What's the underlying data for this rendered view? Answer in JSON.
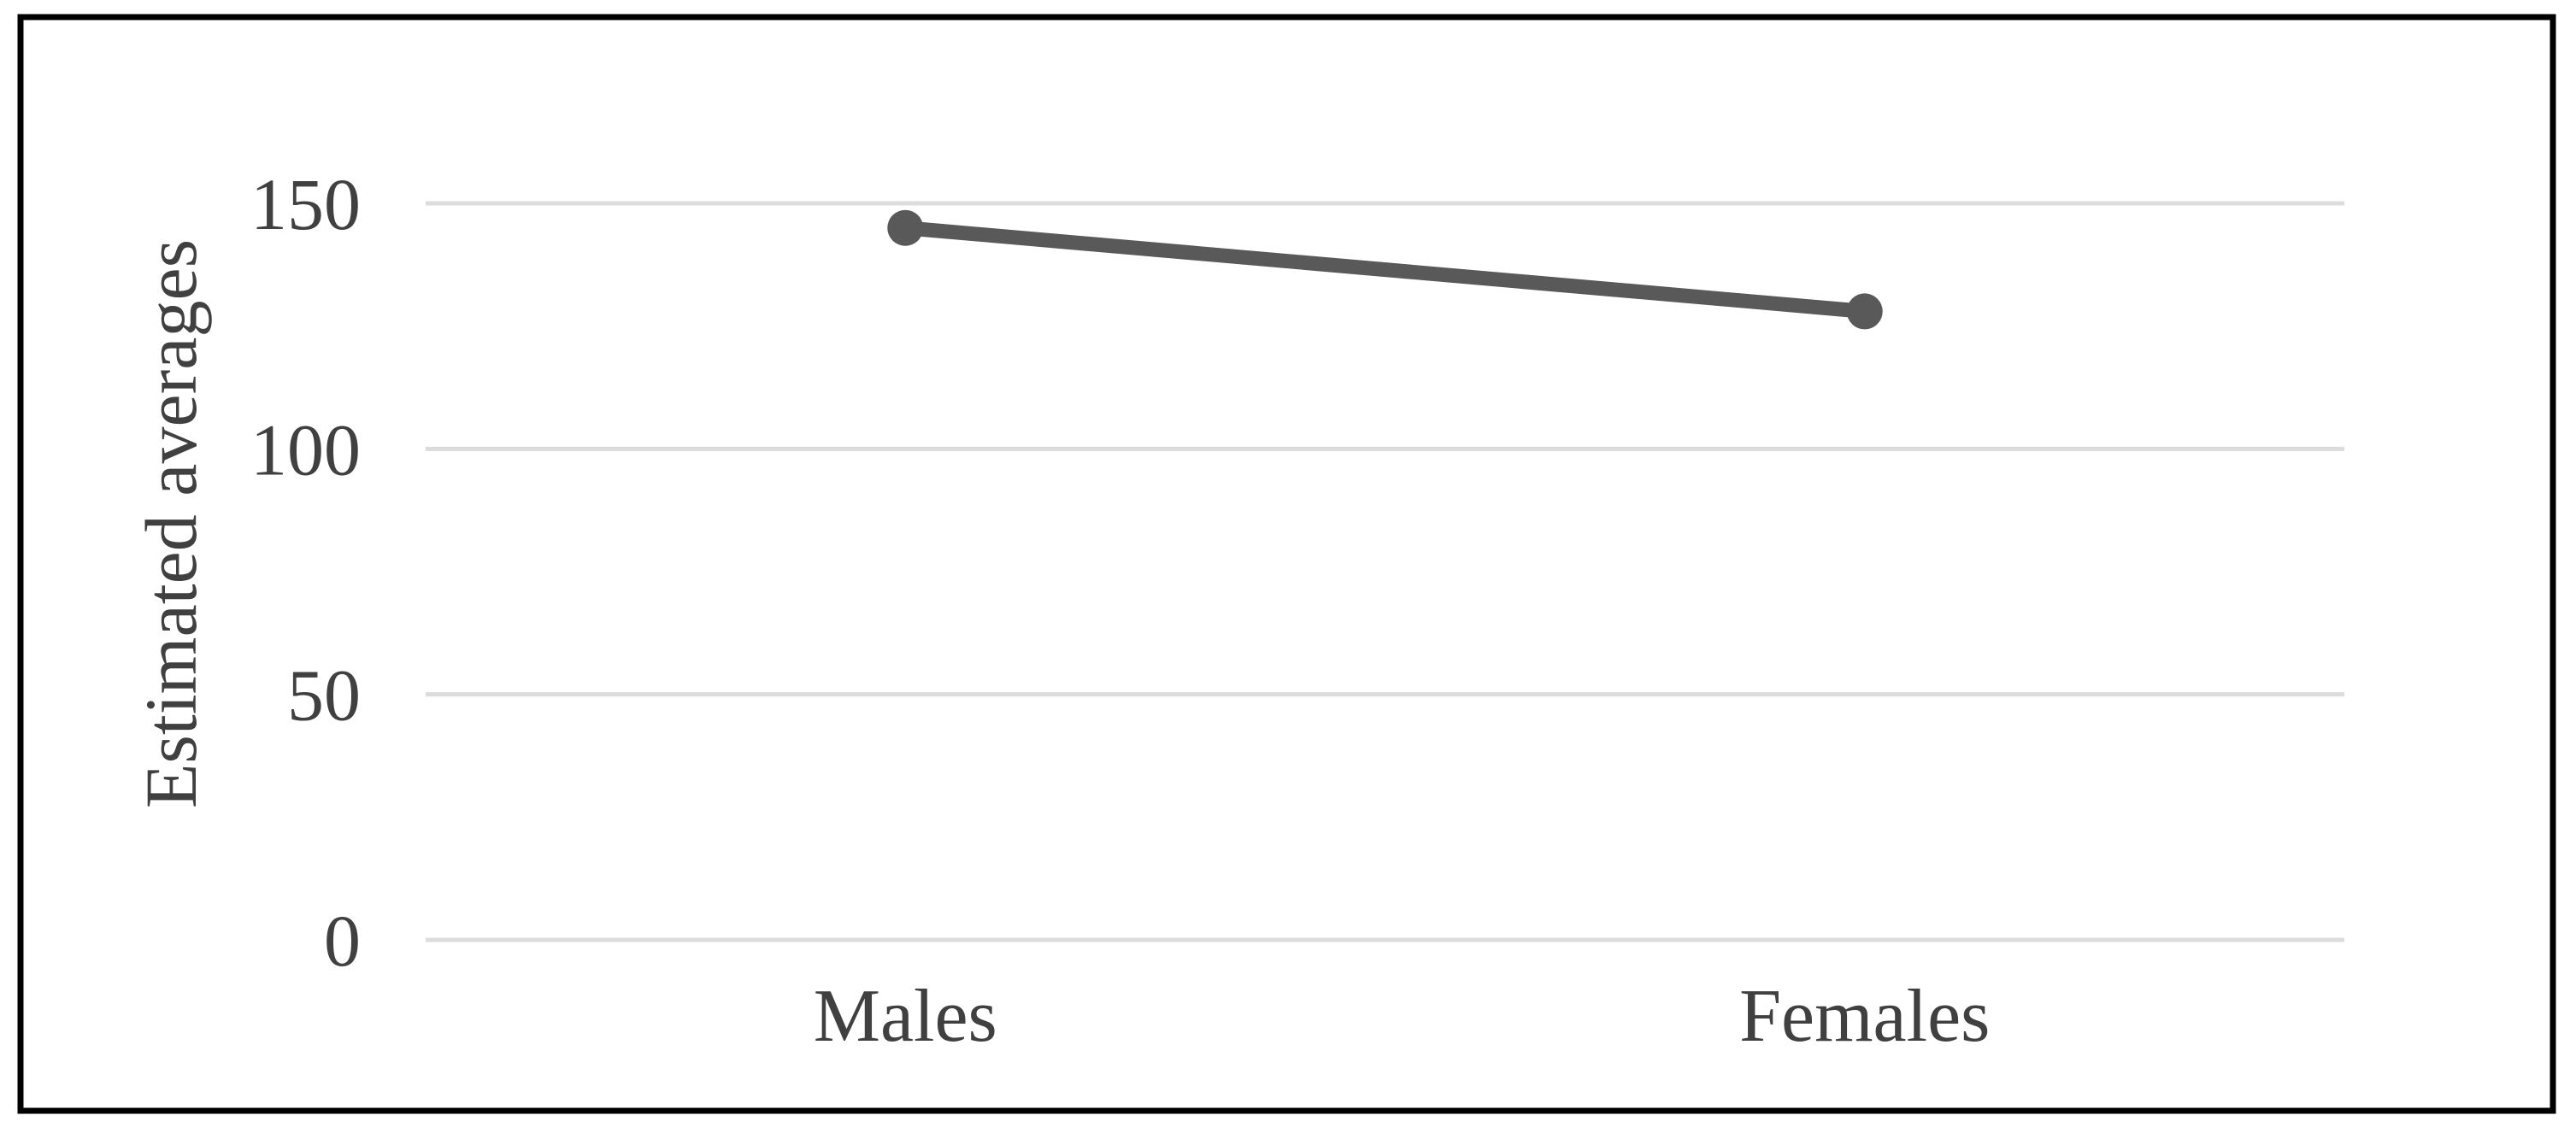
{
  "figure": {
    "background_color": "#ffffff",
    "frame_color": "#000000",
    "text_color": "#404040"
  },
  "chart_data": {
    "type": "line",
    "title": "",
    "categories": [
      "Males",
      "Females"
    ],
    "series": [
      {
        "name": "Estimated averages",
        "values": [
          145,
          128
        ]
      }
    ],
    "xlabel": "",
    "ylabel": "Estimated averages",
    "yticks": [
      0,
      50,
      100,
      150
    ],
    "ylim": [
      0,
      157
    ],
    "grid": "horizontal-only",
    "legend_position": "none",
    "line_color": "#595959",
    "marker_shape": "circle",
    "gridline_color": "#dcdcdc",
    "tick_label_color": "#404040",
    "category_label_color": "#404040",
    "axis_title_color": "#404040"
  }
}
